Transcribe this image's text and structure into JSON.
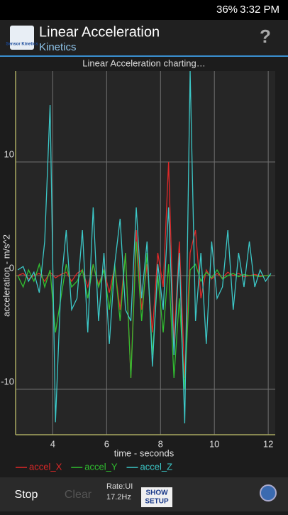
{
  "status_bar": {
    "battery": "36%",
    "time": "3:32 PM"
  },
  "header": {
    "logo": "Sensor Kinetics",
    "title": "Linear Acceleration",
    "subtitle": "Kinetics",
    "help": "?"
  },
  "chart_data": {
    "type": "line",
    "title": "Linear Acceleration charting…",
    "x_label": "time - seconds",
    "y_label": "acceleration - m/s^2",
    "x": [
      2.7,
      2.9,
      3.1,
      3.3,
      3.5,
      3.7,
      3.9,
      4.1,
      4.3,
      4.5,
      4.7,
      4.9,
      5.1,
      5.3,
      5.5,
      5.7,
      5.9,
      6.1,
      6.3,
      6.5,
      6.7,
      6.9,
      7.1,
      7.3,
      7.5,
      7.7,
      7.9,
      8.1,
      8.3,
      8.5,
      8.7,
      8.9,
      9.1,
      9.3,
      9.5,
      9.7,
      9.9,
      10.1,
      10.3,
      10.5,
      10.7,
      10.9,
      11.1,
      11.3,
      11.5,
      11.7,
      11.9,
      12.1
    ],
    "series": [
      {
        "name": "accel_X",
        "color": "#e02828",
        "values": [
          0,
          0.2,
          -0.3,
          0,
          0.2,
          -0.5,
          0.3,
          -0.2,
          0.1,
          0.3,
          -0.5,
          0.2,
          0.5,
          -1,
          1,
          -0.8,
          0.5,
          -1.5,
          0.8,
          -3,
          2,
          -9,
          4,
          -3,
          1,
          -5,
          2,
          -1,
          10,
          -6,
          3,
          -9,
          2,
          4,
          -2,
          0.5,
          -0.3,
          0.2,
          -0.2,
          0.3,
          0,
          0.2,
          -0.1,
          0,
          0.1,
          0,
          0,
          0
        ]
      },
      {
        "name": "accel_Y",
        "color": "#30c030",
        "values": [
          0,
          -1,
          0.5,
          -0.5,
          1,
          -1,
          0.5,
          -5,
          -2,
          1,
          -1,
          -0.5,
          0.5,
          -2,
          1,
          -1,
          0.5,
          -3,
          1,
          -4,
          2,
          -9,
          3,
          -4,
          2,
          -7,
          0,
          -5,
          1,
          -9,
          -2,
          -10,
          0.5,
          1,
          -0.5,
          0.3,
          -0.2,
          0.5,
          -0.3,
          0,
          0.2,
          -0.1,
          0.1,
          0,
          0,
          -0.1,
          0,
          0
        ]
      },
      {
        "name": "accel_Z",
        "color": "#3cc8c8",
        "values": [
          0.5,
          0.8,
          -0.5,
          0.3,
          -1.5,
          3,
          15,
          -12.9,
          -1,
          4,
          -3,
          -2,
          4,
          -5,
          6,
          -4,
          2,
          -6,
          1,
          5,
          -3,
          -4,
          6,
          -2,
          3,
          -8,
          1,
          -3,
          6,
          -7,
          2,
          -13,
          18,
          -4,
          2,
          -6,
          3,
          -2,
          -1,
          4,
          -3,
          2,
          -1,
          3,
          -1,
          0.5,
          -0.5,
          0.2
        ]
      }
    ],
    "xlim": [
      2.62,
      12.26
    ],
    "ylim": [
      -14,
      19.25
    ],
    "xticks": [
      4,
      6,
      8,
      10,
      12
    ],
    "yticks": [
      -10,
      0,
      10
    ],
    "grid": true
  },
  "toolbar": {
    "stop": "Stop",
    "clear": "Clear",
    "rate": "Rate:UI",
    "rate_value": "17.2Hz",
    "setup_top": "SHOW",
    "setup_bottom": "SETUP"
  }
}
